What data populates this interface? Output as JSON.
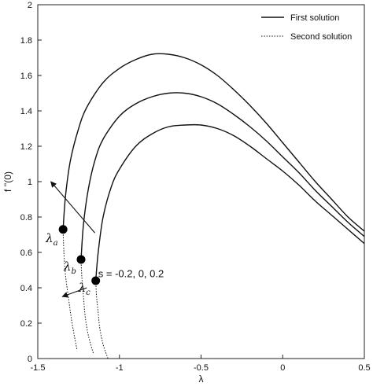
{
  "chart_data": {
    "type": "line",
    "xlabel": "λ",
    "ylabel": "f ''(0)",
    "xlim": [
      -1.5,
      0.5
    ],
    "ylim": [
      0,
      2
    ],
    "x_ticks": [
      -1.5,
      -1,
      -0.5,
      0,
      0.5
    ],
    "x_tick_labels": [
      "-1.5",
      "-1",
      "-0.5",
      "0",
      "0.5"
    ],
    "y_ticks": [
      0,
      0.2,
      0.4,
      0.6,
      0.8,
      1,
      1.2,
      1.4,
      1.6,
      1.8,
      2
    ],
    "y_tick_labels": [
      "0",
      "0.2",
      "0.4",
      "0.6",
      "0.8",
      "1",
      "1.2",
      "1.4",
      "1.6",
      "1.8",
      "2"
    ],
    "grid": false,
    "legend_position": "top-right",
    "legend": [
      {
        "label": "First solution",
        "style": "solid"
      },
      {
        "label": "Second solution",
        "style": "dotted"
      }
    ],
    "series": [
      {
        "solution": "first",
        "style": "solid",
        "x": [
          -1.345,
          -1.33,
          -1.3,
          -1.25,
          -1.2,
          -1.1,
          -1.0,
          -0.9,
          -0.8,
          -0.7,
          -0.6,
          -0.5,
          -0.4,
          -0.3,
          -0.2,
          -0.1,
          0.0,
          0.1,
          0.2,
          0.3,
          0.4,
          0.5
        ],
        "y": [
          0.73,
          0.92,
          1.12,
          1.3,
          1.42,
          1.56,
          1.64,
          1.69,
          1.72,
          1.72,
          1.7,
          1.66,
          1.6,
          1.52,
          1.43,
          1.33,
          1.22,
          1.11,
          1.0,
          0.9,
          0.8,
          0.72
        ]
      },
      {
        "solution": "first",
        "style": "solid",
        "x": [
          -1.235,
          -1.22,
          -1.19,
          -1.15,
          -1.1,
          -1.0,
          -0.9,
          -0.8,
          -0.7,
          -0.6,
          -0.5,
          -0.4,
          -0.3,
          -0.2,
          -0.1,
          0.0,
          0.1,
          0.2,
          0.3,
          0.4,
          0.5
        ],
        "y": [
          0.56,
          0.76,
          0.96,
          1.12,
          1.24,
          1.37,
          1.44,
          1.48,
          1.5,
          1.5,
          1.48,
          1.44,
          1.38,
          1.31,
          1.23,
          1.14,
          1.05,
          0.95,
          0.86,
          0.77,
          0.69
        ]
      },
      {
        "solution": "first",
        "style": "solid",
        "x": [
          -1.145,
          -1.13,
          -1.1,
          -1.05,
          -1.0,
          -0.9,
          -0.8,
          -0.7,
          -0.6,
          -0.5,
          -0.4,
          -0.3,
          -0.2,
          -0.1,
          0.0,
          0.1,
          0.2,
          0.3,
          0.4,
          0.5
        ],
        "y": [
          0.44,
          0.6,
          0.8,
          0.97,
          1.07,
          1.2,
          1.27,
          1.31,
          1.32,
          1.32,
          1.3,
          1.26,
          1.2,
          1.13,
          1.06,
          0.98,
          0.89,
          0.81,
          0.73,
          0.65
        ]
      },
      {
        "solution": "second",
        "style": "dotted",
        "x": [
          -1.345,
          -1.34,
          -1.33,
          -1.31,
          -1.29,
          -1.26
        ],
        "y": [
          0.73,
          0.6,
          0.47,
          0.33,
          0.2,
          0.05
        ]
      },
      {
        "solution": "second",
        "style": "dotted",
        "x": [
          -1.235,
          -1.23,
          -1.22,
          -1.21,
          -1.19,
          -1.16
        ],
        "y": [
          0.56,
          0.46,
          0.35,
          0.24,
          0.13,
          0.03
        ]
      },
      {
        "solution": "second",
        "style": "dotted",
        "x": [
          -1.145,
          -1.14,
          -1.13,
          -1.12,
          -1.1,
          -1.07
        ],
        "y": [
          0.44,
          0.35,
          0.26,
          0.17,
          0.08,
          0.0
        ]
      }
    ],
    "critical_points": [
      {
        "label": "λ",
        "subscript": "a",
        "x": -1.345,
        "y": 0.73
      },
      {
        "label": "λ",
        "subscript": "b",
        "x": -1.235,
        "y": 0.56
      },
      {
        "label": "λ",
        "subscript": "c",
        "x": -1.145,
        "y": 0.44
      }
    ],
    "annotations": [
      {
        "text": "s = -0.2, 0, 0.2",
        "x": -1.13,
        "y": 0.46
      }
    ],
    "arrows": [
      {
        "from": [
          -1.15,
          0.71
        ],
        "to": [
          -1.42,
          1.0
        ]
      },
      {
        "from": [
          -1.2,
          0.4
        ],
        "to": [
          -1.35,
          0.35
        ]
      }
    ]
  }
}
